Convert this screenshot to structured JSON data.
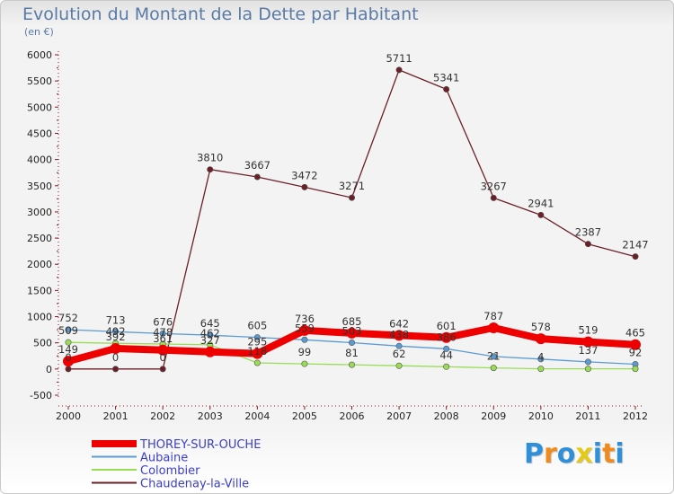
{
  "chart_data": {
    "type": "line",
    "title": "Evolution du Montant de la Dette par Habitant",
    "unit_label": "(en €)",
    "x": [
      "2000",
      "2001",
      "2002",
      "2003",
      "2004",
      "2005",
      "2006",
      "2007",
      "2008",
      "2009",
      "2010",
      "2011",
      "2012"
    ],
    "ylim": [
      -500,
      6000
    ],
    "yticks": [
      -500,
      0,
      500,
      1000,
      1500,
      2000,
      2500,
      3000,
      3500,
      4000,
      4500,
      5000,
      5500,
      6000
    ],
    "grid": false,
    "legend_position": "bottom-left",
    "series": [
      {
        "name": "Chaudenay-la-Ville",
        "color": "#6b2027",
        "values": [
          0,
          0,
          0,
          3810,
          3667,
          3472,
          3271,
          5711,
          5341,
          3267,
          2941,
          2387,
          2147
        ],
        "labels": [
          "0",
          "0",
          "0",
          "3810",
          "3667",
          "3472",
          "3271",
          "5711",
          "5341",
          "3267",
          "2941",
          "2387",
          "2147"
        ]
      },
      {
        "name": "Aubaine",
        "color": "#5b9bd1",
        "values": [
          752,
          713,
          676,
          645,
          605,
          559,
          503,
          438,
          386,
          239,
          189,
          137,
          92
        ],
        "labels": [
          "752",
          "713",
          "676",
          "645",
          "605",
          "559",
          "503",
          "438",
          "386",
          "",
          "",
          "137",
          "92"
        ]
      },
      {
        "name": "Colombier",
        "color": "#99dd55",
        "values": [
          509,
          492,
          478,
          462,
          118,
          99,
          81,
          62,
          44,
          21,
          4,
          4,
          4
        ],
        "labels": [
          "509",
          "492",
          "478",
          "462",
          "118",
          "99",
          "81",
          "62",
          "44",
          "21",
          "4",
          "",
          ""
        ]
      },
      {
        "name": "THOREY-SUR-OUCHE",
        "color": "#ee0000",
        "values": [
          149,
          392,
          361,
          327,
          295,
          736,
          685,
          642,
          601,
          787,
          578,
          519,
          465
        ],
        "labels": [
          "149",
          "392",
          "361",
          "327",
          "295",
          "736",
          "685",
          "642",
          "601",
          "787",
          "578",
          "519",
          "465"
        ]
      }
    ],
    "legend": [
      "THOREY-SUR-OUCHE",
      "Aubaine",
      "Colombier",
      "Chaudenay-la-Ville"
    ]
  },
  "logo": {
    "letters": [
      "P",
      "r",
      "o",
      "x",
      "i",
      "t",
      "i"
    ],
    "colors": [
      "#2f8fd8",
      "#f08a1c",
      "#2f8fd8",
      "#e2c91a",
      "#2f8fd8",
      "#f08a1c",
      "#2f8fd8"
    ]
  }
}
